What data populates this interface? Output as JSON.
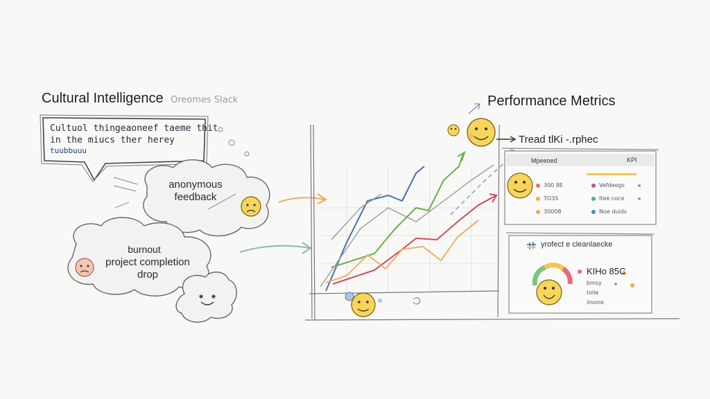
{
  "left": {
    "title": "Cultural Intelligence",
    "title_sub": "Oreomes Slack",
    "speech_bubble": {
      "line1": "Cultuol thingeaoneef taeme thit",
      "line2": "in the miucs ther herey",
      "line3": "tuubbuuu"
    },
    "cloud_feedback": {
      "line1": "anonymous",
      "line2": "feedback"
    },
    "cloud_burnout": {
      "line1": "burnout",
      "line2": "project completion",
      "line3": "drop"
    }
  },
  "right": {
    "title": "Performance Metrics",
    "trend_label": "Tread tlKi -.rphec",
    "panel1": {
      "header_left": "Mpeeoed",
      "header_right": "KPI",
      "rows": [
        {
          "left": "300 8E",
          "right": "Vefdeegs"
        },
        {
          "left": "TO3S",
          "right": "Itee coce"
        },
        {
          "left": "30008",
          "right": "Noe duids"
        }
      ]
    },
    "panel2": {
      "title": "yrofect e cleanlaecke",
      "headline": "KIHo 85C",
      "rows": [
        "bmsy",
        "tolle",
        "imone"
      ]
    }
  },
  "colors": {
    "blue": "#4a6fb0",
    "green": "#6ab04a",
    "red": "#d04a5a",
    "orange": "#f0a860",
    "gray": "#9a9a9a",
    "emoji": "#f7d55a",
    "gauge_green": "#7cc47a",
    "gauge_yellow": "#f5c84a",
    "gauge_red": "#e86a7a"
  }
}
